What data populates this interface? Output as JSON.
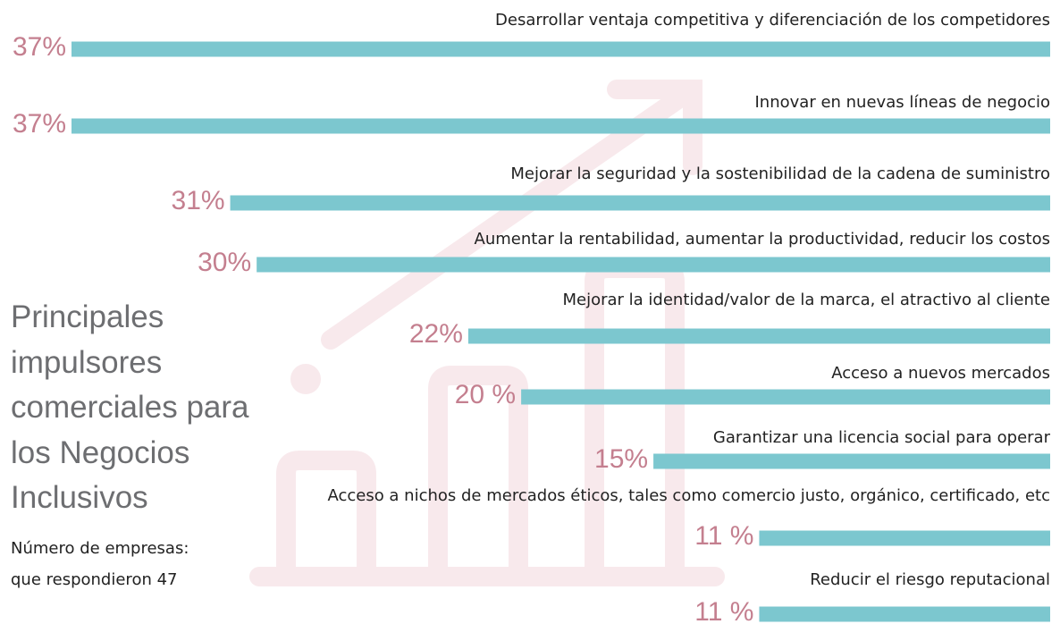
{
  "chart_data": {
    "type": "bar",
    "title": "Principales impulsores comerciales para los Negocios Inclusivos",
    "subtitle": [
      "Número de empresas:",
      "que respondieron 47"
    ],
    "categories": [
      "Desarrollar ventaja competitiva y diferenciación de los competidores",
      "Innovar en nuevas líneas de negocio",
      "Mejorar la seguridad y la sostenibilidad de la cadena de suministro",
      "Aumentar la rentabilidad, aumentar la productividad, reducir los costos",
      "Mejorar la identidad/valor de la marca, el atractivo al cliente",
      "Acceso a nuevos mercados",
      "Garantizar una licencia social para operar",
      "Acceso a nichos de mercados éticos, tales como comercio justo, orgánico, certificado, etc",
      "Reducir el riesgo reputacional"
    ],
    "values": [
      37,
      37,
      31,
      30,
      22,
      20,
      15,
      11,
      11
    ],
    "value_labels": [
      "37%",
      "37%",
      "31%",
      "30%",
      "22%",
      "20 %",
      "15%",
      "11 %",
      "11 %"
    ],
    "xlim": [
      0,
      37
    ],
    "color": "#7cc7cf"
  }
}
